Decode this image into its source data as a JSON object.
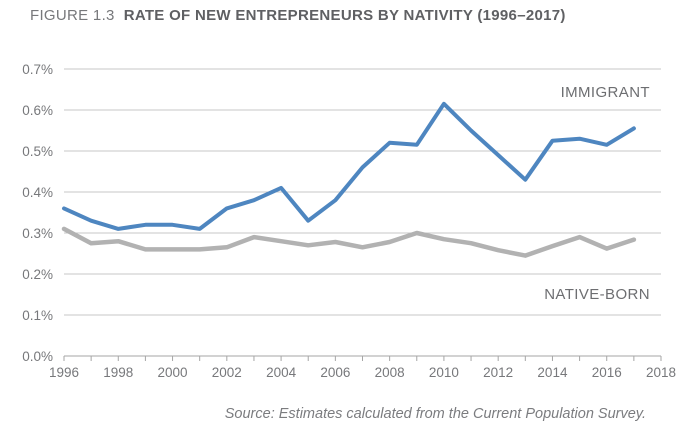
{
  "figure": {
    "label": "FIGURE 1.3",
    "title": "RATE OF NEW ENTREPRENEURS BY NATIVITY (1996–2017)",
    "source": "Source: Estimates calculated from the Current Population Survey."
  },
  "chart_data": {
    "type": "line",
    "x": [
      1996,
      1997,
      1998,
      1999,
      2000,
      2001,
      2002,
      2003,
      2004,
      2005,
      2006,
      2007,
      2008,
      2009,
      2010,
      2011,
      2012,
      2013,
      2014,
      2015,
      2016,
      2017
    ],
    "series": [
      {
        "name": "IMMIGRANT",
        "color": "#4e86c0",
        "values": [
          0.36,
          0.33,
          0.31,
          0.32,
          0.32,
          0.31,
          0.36,
          0.38,
          0.41,
          0.33,
          0.38,
          0.46,
          0.52,
          0.515,
          0.615,
          0.55,
          0.49,
          0.43,
          0.525,
          0.53,
          0.515,
          0.555
        ]
      },
      {
        "name": "NATIVE-BORN",
        "color": "#b2b2b2",
        "values": [
          0.31,
          0.275,
          0.28,
          0.26,
          0.26,
          0.26,
          0.265,
          0.29,
          0.28,
          0.27,
          0.278,
          0.265,
          0.278,
          0.3,
          0.285,
          0.275,
          0.258,
          0.245,
          0.268,
          0.29,
          0.262,
          0.284
        ]
      }
    ],
    "y_ticks": [
      {
        "label": "0.0%",
        "value": 0.0
      },
      {
        "label": "0.1%",
        "value": 0.1
      },
      {
        "label": "0.2%",
        "value": 0.2
      },
      {
        "label": "0.3%",
        "value": 0.3
      },
      {
        "label": "0.4%",
        "value": 0.4
      },
      {
        "label": "0.5%",
        "value": 0.5
      },
      {
        "label": "0.6%",
        "value": 0.6
      },
      {
        "label": "0.7%",
        "value": 0.7
      }
    ],
    "x_tick_labels": [
      {
        "label": "1996",
        "value": 1996
      },
      {
        "label": "1998",
        "value": 1998
      },
      {
        "label": "2000",
        "value": 2000
      },
      {
        "label": "2002",
        "value": 2002
      },
      {
        "label": "2004",
        "value": 2004
      },
      {
        "label": "2006",
        "value": 2006
      },
      {
        "label": "2008",
        "value": 2008
      },
      {
        "label": "2010",
        "value": 2010
      },
      {
        "label": "2012",
        "value": 2012
      },
      {
        "label": "2014",
        "value": 2014
      },
      {
        "label": "2016",
        "value": 2016
      },
      {
        "label": "2018",
        "value": 2018
      }
    ],
    "x_axis_range": [
      1996,
      2018
    ],
    "ylim": [
      0.0,
      0.7
    ],
    "grid": "horizontal",
    "legend_position": "inline-right-annotations",
    "title": "RATE OF NEW ENTREPRENEURS BY NATIVITY (1996–2017)"
  },
  "colors": {
    "immigrant_line": "#4e86c0",
    "native_born_line": "#b2b2b2",
    "gridline": "#c7c7c7",
    "axis": "#a6a6a6",
    "axis_text": "#77787b",
    "title_text": "#5f6063",
    "background": "#ffffff"
  }
}
